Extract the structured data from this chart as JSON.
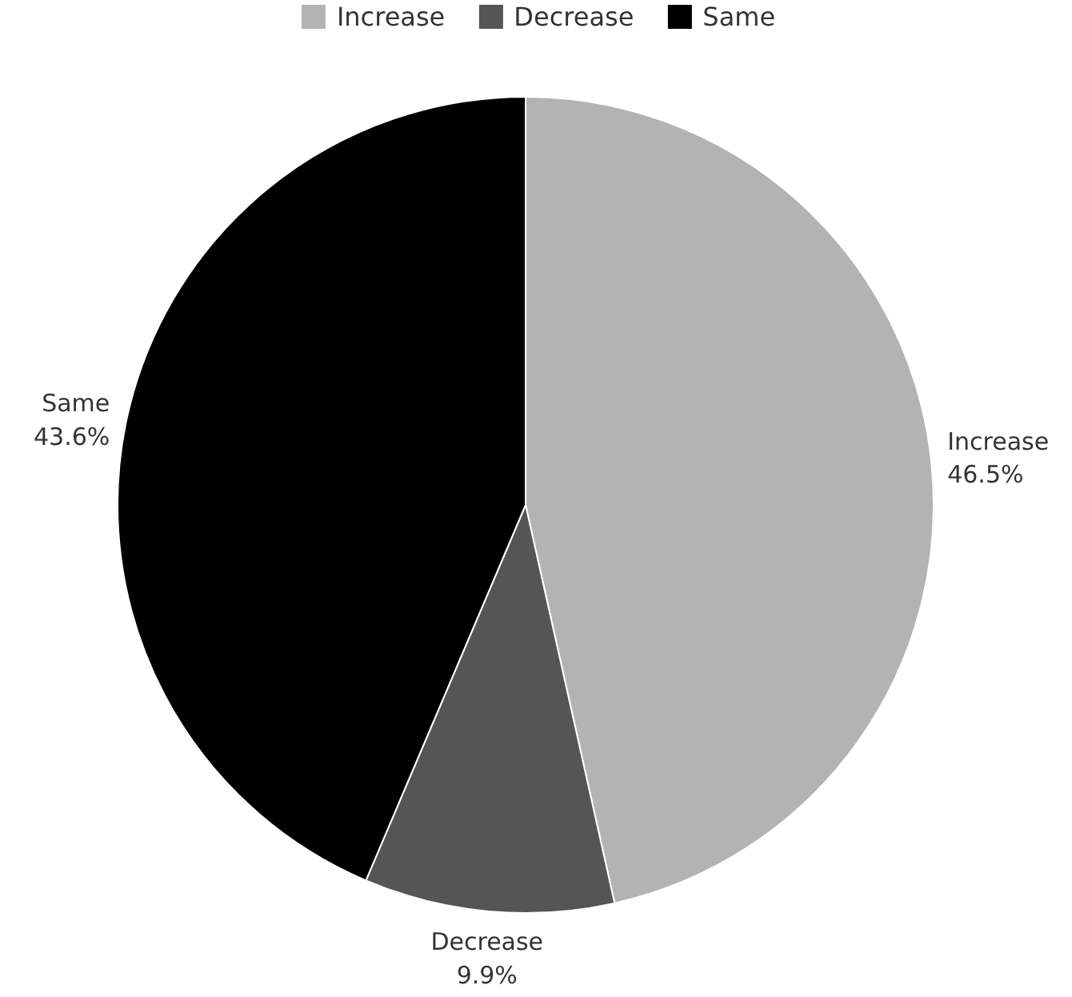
{
  "chart_data": {
    "type": "pie",
    "categories": [
      "Increase",
      "Decrease",
      "Same"
    ],
    "values": [
      46.5,
      9.9,
      43.6
    ],
    "colors": [
      "#b3b3b3",
      "#555555",
      "#000000"
    ],
    "value_labels": [
      "46.5%",
      "9.9%",
      "43.6%"
    ],
    "legend": "top"
  }
}
